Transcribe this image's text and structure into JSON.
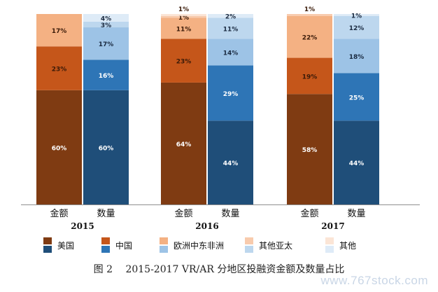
{
  "chart_data": {
    "type": "bar",
    "stacked": true,
    "groups": [
      {
        "year": "2015",
        "bars": [
          {
            "label": "金额",
            "segments": [
              60,
              23,
              17,
              0,
              0
            ],
            "seg_labels": [
              "60%",
              "23%",
              "17%",
              "",
              ""
            ]
          },
          {
            "label": "数量",
            "segments": [
              60,
              16,
              17,
              3,
              4
            ],
            "seg_labels": [
              "60%",
              "16%",
              "17%",
              "3%",
              "4%"
            ]
          }
        ]
      },
      {
        "year": "2016",
        "bars": [
          {
            "label": "金额",
            "segments": [
              64,
              23,
              11,
              1,
              1
            ],
            "seg_labels": [
              "64%",
              "23%",
              "11%",
              "1%",
              "1%"
            ]
          },
          {
            "label": "数量",
            "segments": [
              44,
              29,
              14,
              11,
              2
            ],
            "seg_labels": [
              "44%",
              "29%",
              "14%",
              "11%",
              "2%"
            ]
          }
        ]
      },
      {
        "year": "2017",
        "bars": [
          {
            "label": "金额",
            "segments": [
              58,
              19,
              22,
              1,
              0
            ],
            "seg_labels": [
              "58%",
              "19%",
              "22%",
              "1%",
              ""
            ]
          },
          {
            "label": "数量",
            "segments": [
              44,
              25,
              18,
              12,
              1
            ],
            "seg_labels": [
              "44%",
              "25%",
              "18%",
              "12%",
              "1%"
            ]
          }
        ]
      }
    ],
    "legend": [
      {
        "name": "美国",
        "amount_color": "#7f3b12",
        "count_color": "#1f4e79"
      },
      {
        "name": "中国",
        "amount_color": "#c5561a",
        "count_color": "#2e75b6"
      },
      {
        "name": "欧洲中东非洲",
        "amount_color": "#f4b183",
        "count_color": "#9dc3e6"
      },
      {
        "name": "其他亚太",
        "amount_color": "#f8cbad",
        "count_color": "#bdd7ee"
      },
      {
        "name": "其他",
        "amount_color": "#fbe5d6",
        "count_color": "#deebf7"
      }
    ],
    "ylim": [
      0,
      100
    ]
  },
  "caption": "图 2　 2015-2017 VR/AR 分地区投融资金额及数量占比",
  "watermark": "www.767stock.com"
}
